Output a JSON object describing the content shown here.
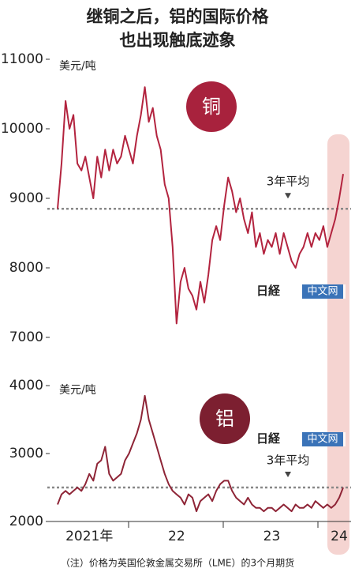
{
  "title_lines": [
    "继铜之后，铝的国际价格",
    "也出现触底迹象"
  ],
  "watermark": [
    "日経",
    "中文网"
  ],
  "note": "（注）价格为英国伦敦金属交易所（LME）的3个月期货",
  "chart_data": [
    {
      "type": "line",
      "badge": "铜",
      "y_label": "美元/吨",
      "ylim": [
        7000,
        11000
      ],
      "yticks": [
        7000,
        8000,
        9000,
        10000,
        11000
      ],
      "reference_line": {
        "value": 8850,
        "label": "3年平均"
      },
      "categories": [
        null,
        null,
        null,
        null,
        null,
        null,
        null,
        null,
        "2021年",
        null,
        null,
        null,
        null,
        null,
        null,
        null,
        null,
        null,
        null,
        null,
        null,
        null,
        null,
        null,
        null,
        null,
        null,
        null,
        null,
        null,
        "22",
        null,
        null,
        null,
        null,
        null,
        null,
        null,
        null,
        null,
        null,
        null,
        null,
        null,
        null,
        null,
        null,
        null,
        null,
        null,
        null,
        null,
        null,
        null,
        "23",
        null,
        null,
        null,
        null,
        null,
        null,
        null,
        null,
        null,
        null,
        null,
        null,
        null,
        null,
        null,
        null,
        "24",
        null
      ],
      "series": [
        {
          "color": "#b3243f",
          "values": [
            8850,
            9500,
            10400,
            10000,
            10200,
            9500,
            9400,
            9600,
            9300,
            9000,
            9600,
            9300,
            9700,
            9400,
            9700,
            9500,
            9600,
            9900,
            9700,
            9500,
            9900,
            10200,
            10600,
            10100,
            10300,
            9900,
            9700,
            9200,
            9000,
            8300,
            7200,
            7800,
            8000,
            7700,
            7600,
            7400,
            7800,
            7500,
            7900,
            8400,
            8600,
            8400,
            8900,
            9300,
            9100,
            8800,
            9000,
            8700,
            8500,
            8800,
            8300,
            8500,
            8200,
            8400,
            8300,
            8500,
            8200,
            8500,
            8300,
            8100,
            8000,
            8200,
            8300,
            8500,
            8300,
            8500,
            8400,
            8600,
            8300,
            8500,
            8700,
            9000,
            9350
          ]
        }
      ]
    },
    {
      "type": "line",
      "badge": "铝",
      "y_label": "美元/吨",
      "ylim": [
        2000,
        4000
      ],
      "yticks": [
        2000,
        3000,
        4000
      ],
      "reference_line": {
        "value": 2500,
        "label": "3年平均"
      },
      "categories": [
        null,
        null,
        null,
        null,
        null,
        null,
        null,
        null,
        "2021年",
        null,
        null,
        null,
        null,
        null,
        null,
        null,
        null,
        null,
        null,
        null,
        null,
        null,
        null,
        null,
        null,
        null,
        null,
        null,
        null,
        null,
        "22",
        null,
        null,
        null,
        null,
        null,
        null,
        null,
        null,
        null,
        null,
        null,
        null,
        null,
        null,
        null,
        null,
        null,
        null,
        null,
        null,
        null,
        null,
        null,
        "23",
        null,
        null,
        null,
        null,
        null,
        null,
        null,
        null,
        null,
        null,
        null,
        null,
        null,
        null,
        null,
        null,
        "24",
        null
      ],
      "series": [
        {
          "color": "#8e2436",
          "values": [
            2250,
            2400,
            2450,
            2400,
            2450,
            2500,
            2450,
            2550,
            2700,
            2600,
            2850,
            2900,
            3100,
            2700,
            2600,
            2650,
            2700,
            2900,
            3000,
            3150,
            3300,
            3500,
            3850,
            3500,
            3300,
            3100,
            2900,
            2700,
            2550,
            2450,
            2400,
            2350,
            2250,
            2400,
            2350,
            2150,
            2300,
            2350,
            2400,
            2300,
            2450,
            2550,
            2600,
            2600,
            2450,
            2350,
            2300,
            2250,
            2350,
            2250,
            2200,
            2200,
            2150,
            2200,
            2200,
            2150,
            2200,
            2250,
            2200,
            2150,
            2250,
            2200,
            2200,
            2250,
            2200,
            2300,
            2250,
            2200,
            2250,
            2200,
            2250,
            2350,
            2500
          ]
        }
      ]
    }
  ]
}
